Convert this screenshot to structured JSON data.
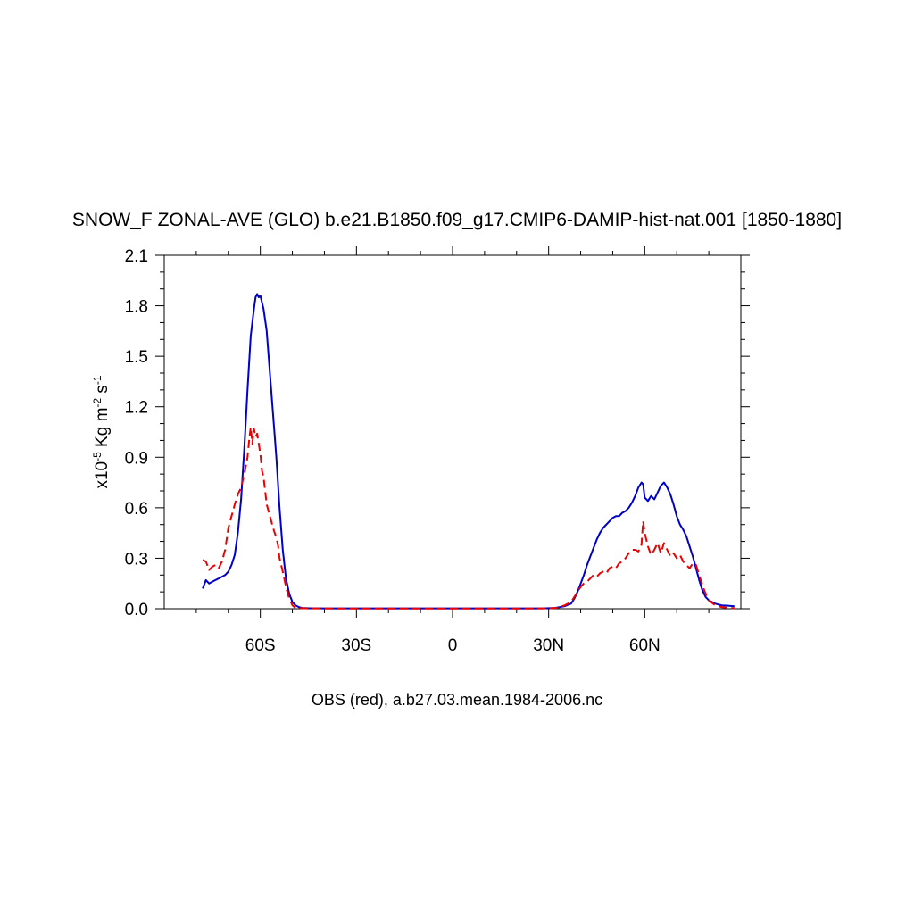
{
  "chart_data": {
    "type": "line",
    "title": "SNOW_F ZONAL-AVE (GLO) b.e21.B1850.f09_g17.CMIP6-DAMIP-hist-nat.001 [1850-1880]",
    "xlabel": "OBS (red), a.b27.03.mean.1984-2006.nc",
    "ylabel": {
      "prefix": "x10",
      "exp": "-5",
      "unit1": " Kg m",
      "exp2": "-2",
      "unit2": " s",
      "exp3": "-1"
    },
    "xlim": [
      -90,
      90
    ],
    "ylim": [
      0,
      2.1
    ],
    "x_ticks": [
      {
        "value": -60,
        "label": "60S"
      },
      {
        "value": -30,
        "label": "30S"
      },
      {
        "value": 0,
        "label": "0"
      },
      {
        "value": 30,
        "label": "30N"
      },
      {
        "value": 60,
        "label": "60N"
      }
    ],
    "y_ticks": [
      {
        "value": 0.0,
        "label": "0.0"
      },
      {
        "value": 0.3,
        "label": "0.3"
      },
      {
        "value": 0.6,
        "label": "0.6"
      },
      {
        "value": 0.9,
        "label": "0.9"
      },
      {
        "value": 1.2,
        "label": "1.2"
      },
      {
        "value": 1.5,
        "label": "1.5"
      },
      {
        "value": 1.8,
        "label": "1.8"
      },
      {
        "value": 2.1,
        "label": "2.1"
      }
    ],
    "series": [
      {
        "color": "#0000cc",
        "dash": "solid",
        "points": [
          [
            -78,
            0.12
          ],
          [
            -77,
            0.17
          ],
          [
            -76,
            0.15
          ],
          [
            -75,
            0.16
          ],
          [
            -74,
            0.17
          ],
          [
            -73,
            0.18
          ],
          [
            -72,
            0.19
          ],
          [
            -71,
            0.2
          ],
          [
            -70,
            0.22
          ],
          [
            -69,
            0.26
          ],
          [
            -68,
            0.32
          ],
          [
            -67,
            0.45
          ],
          [
            -66,
            0.65
          ],
          [
            -65,
            0.95
          ],
          [
            -64,
            1.3
          ],
          [
            -63,
            1.62
          ],
          [
            -62,
            1.78
          ],
          [
            -61.5,
            1.85
          ],
          [
            -61,
            1.87
          ],
          [
            -60.5,
            1.85
          ],
          [
            -60,
            1.86
          ],
          [
            -59.5,
            1.82
          ],
          [
            -59,
            1.78
          ],
          [
            -58,
            1.65
          ],
          [
            -57,
            1.4
          ],
          [
            -56,
            1.15
          ],
          [
            -55,
            0.9
          ],
          [
            -54,
            0.6
          ],
          [
            -53,
            0.35
          ],
          [
            -52,
            0.18
          ],
          [
            -51,
            0.09
          ],
          [
            -50,
            0.04
          ],
          [
            -49,
            0.02
          ],
          [
            -48,
            0.01
          ],
          [
            -47,
            0.005
          ],
          [
            -45,
            0.003
          ],
          [
            -40,
            0.002
          ],
          [
            -30,
            0.002
          ],
          [
            -20,
            0.002
          ],
          [
            -10,
            0.002
          ],
          [
            0,
            0.002
          ],
          [
            10,
            0.002
          ],
          [
            20,
            0.002
          ],
          [
            28,
            0.002
          ],
          [
            32,
            0.005
          ],
          [
            35,
            0.015
          ],
          [
            37,
            0.03
          ],
          [
            38,
            0.06
          ],
          [
            39,
            0.1
          ],
          [
            40,
            0.15
          ],
          [
            41,
            0.2
          ],
          [
            42,
            0.26
          ],
          [
            43,
            0.31
          ],
          [
            44,
            0.36
          ],
          [
            45,
            0.41
          ],
          [
            46,
            0.45
          ],
          [
            47,
            0.48
          ],
          [
            48,
            0.5
          ],
          [
            49,
            0.52
          ],
          [
            50,
            0.54
          ],
          [
            51,
            0.55
          ],
          [
            52,
            0.55
          ],
          [
            53,
            0.57
          ],
          [
            54,
            0.58
          ],
          [
            55,
            0.6
          ],
          [
            56,
            0.63
          ],
          [
            57,
            0.67
          ],
          [
            58,
            0.72
          ],
          [
            59,
            0.75
          ],
          [
            59.5,
            0.74
          ],
          [
            60,
            0.66
          ],
          [
            61,
            0.64
          ],
          [
            62,
            0.67
          ],
          [
            63,
            0.65
          ],
          [
            64,
            0.69
          ],
          [
            65,
            0.73
          ],
          [
            66,
            0.75
          ],
          [
            67,
            0.72
          ],
          [
            68,
            0.68
          ],
          [
            69,
            0.62
          ],
          [
            70,
            0.55
          ],
          [
            71,
            0.5
          ],
          [
            72,
            0.47
          ],
          [
            73,
            0.43
          ],
          [
            74,
            0.37
          ],
          [
            75,
            0.31
          ],
          [
            76,
            0.24
          ],
          [
            77,
            0.17
          ],
          [
            78,
            0.11
          ],
          [
            79,
            0.07
          ],
          [
            80,
            0.05
          ],
          [
            82,
            0.03
          ],
          [
            84,
            0.02
          ],
          [
            86,
            0.018
          ],
          [
            88,
            0.015
          ]
        ]
      },
      {
        "color": "#ee0000",
        "dash": "dashed",
        "points": [
          [
            -78,
            0.29
          ],
          [
            -77,
            0.28
          ],
          [
            -76,
            0.23
          ],
          [
            -75,
            0.25
          ],
          [
            -74,
            0.26
          ],
          [
            -73,
            0.24
          ],
          [
            -72,
            0.28
          ],
          [
            -71,
            0.35
          ],
          [
            -70,
            0.48
          ],
          [
            -69,
            0.55
          ],
          [
            -68,
            0.62
          ],
          [
            -67,
            0.68
          ],
          [
            -66,
            0.72
          ],
          [
            -65,
            0.8
          ],
          [
            -64,
            0.9
          ],
          [
            -63.5,
            1.0
          ],
          [
            -63,
            1.08
          ],
          [
            -62.5,
            0.98
          ],
          [
            -62,
            1.07
          ],
          [
            -61.5,
            1.02
          ],
          [
            -61,
            1.04
          ],
          [
            -60,
            0.92
          ],
          [
            -59.5,
            0.82
          ],
          [
            -59,
            0.78
          ],
          [
            -58,
            0.62
          ],
          [
            -57,
            0.55
          ],
          [
            -56,
            0.48
          ],
          [
            -55,
            0.42
          ],
          [
            -54.5,
            0.38
          ],
          [
            -54,
            0.3
          ],
          [
            -53,
            0.22
          ],
          [
            -52,
            0.13
          ],
          [
            -51,
            0.06
          ],
          [
            -50,
            0.02
          ],
          [
            -49,
            0.005
          ],
          [
            -45,
            0.002
          ],
          [
            -30,
            0.001
          ],
          [
            -10,
            0.001
          ],
          [
            0,
            0.001
          ],
          [
            10,
            0.001
          ],
          [
            20,
            0.001
          ],
          [
            30,
            0.002
          ],
          [
            33,
            0.006
          ],
          [
            35,
            0.02
          ],
          [
            37,
            0.04
          ],
          [
            38,
            0.07
          ],
          [
            39,
            0.1
          ],
          [
            40,
            0.13
          ],
          [
            41,
            0.15
          ],
          [
            42,
            0.16
          ],
          [
            43,
            0.18
          ],
          [
            44,
            0.2
          ],
          [
            45,
            0.19
          ],
          [
            46,
            0.21
          ],
          [
            47,
            0.22
          ],
          [
            48,
            0.21
          ],
          [
            49,
            0.24
          ],
          [
            50,
            0.25
          ],
          [
            51,
            0.24
          ],
          [
            52,
            0.27
          ],
          [
            53,
            0.28
          ],
          [
            54,
            0.3
          ],
          [
            55,
            0.33
          ],
          [
            56,
            0.35
          ],
          [
            57,
            0.35
          ],
          [
            58,
            0.34
          ],
          [
            59,
            0.38
          ],
          [
            59.5,
            0.52
          ],
          [
            60,
            0.45
          ],
          [
            61,
            0.37
          ],
          [
            62,
            0.32
          ],
          [
            63,
            0.35
          ],
          [
            64,
            0.39
          ],
          [
            65,
            0.33
          ],
          [
            66,
            0.39
          ],
          [
            67,
            0.35
          ],
          [
            68,
            0.31
          ],
          [
            69,
            0.33
          ],
          [
            70,
            0.3
          ],
          [
            71,
            0.32
          ],
          [
            72,
            0.28
          ],
          [
            73,
            0.26
          ],
          [
            74,
            0.24
          ],
          [
            75,
            0.27
          ],
          [
            76,
            0.26
          ],
          [
            77,
            0.2
          ],
          [
            78,
            0.14
          ],
          [
            79,
            0.09
          ],
          [
            80,
            0.05
          ],
          [
            82,
            0.02
          ],
          [
            84,
            0.01
          ],
          [
            86,
            0.005
          ],
          [
            88,
            0.003
          ]
        ]
      }
    ],
    "grid": false
  }
}
